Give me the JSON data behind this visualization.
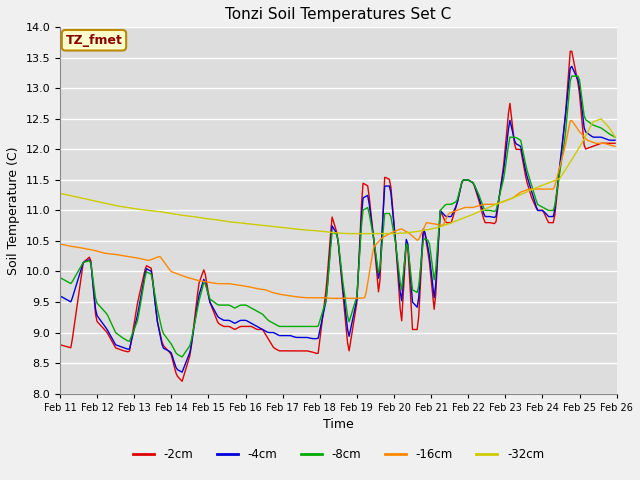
{
  "title": "Tonzi Soil Temperatures Set C",
  "xlabel": "Time",
  "ylabel": "Soil Temperature (C)",
  "ylim": [
    8.0,
    14.0
  ],
  "yticks": [
    8.0,
    8.5,
    9.0,
    9.5,
    10.0,
    10.5,
    11.0,
    11.5,
    12.0,
    12.5,
    13.0,
    13.5,
    14.0
  ],
  "bg_color": "#dddddd",
  "grid_color": "#ffffff",
  "series_colors": {
    "-2cm": "#dd0000",
    "-4cm": "#0000dd",
    "-8cm": "#00aa00",
    "-16cm": "#ff8800",
    "-32cm": "#cccc00"
  },
  "x_tick_labels": [
    "Feb 11",
    "Feb 12",
    "Feb 13",
    "Feb 14",
    "Feb 15",
    "Feb 16",
    "Feb 17",
    "Feb 18",
    "Feb 19",
    "Feb 20",
    "Feb 21",
    "Feb 22",
    "Feb 23",
    "Feb 24",
    "Feb 25",
    "Feb 26"
  ],
  "annotation_text": "TZ_fmet",
  "annotation_bg": "#ffffcc",
  "annotation_border": "#bb8800",
  "figsize": [
    6.4,
    4.8
  ],
  "dpi": 100
}
